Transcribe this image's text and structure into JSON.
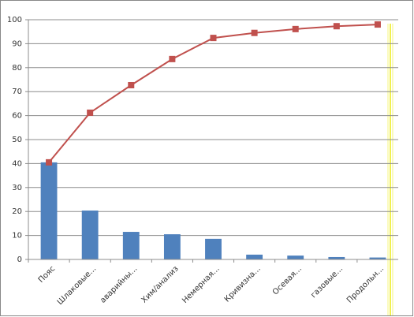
{
  "chart_data": {
    "type": "bar",
    "categories": [
      "Пояс",
      "Шлаковые...",
      "аварийны...",
      "Хим/анализ",
      "Немерная...",
      "Кривизна...",
      "Осевая...",
      "газовые...",
      "Продольн..."
    ],
    "series": [
      {
        "type": "bar",
        "color": "#4f81bd",
        "values": [
          40.5,
          20.4,
          11.5,
          10.5,
          8.6,
          2,
          1.6,
          1,
          0.8
        ]
      },
      {
        "type": "line",
        "color": "#c0504d",
        "values": [
          40.5,
          61.2,
          72.7,
          83.6,
          92.4,
          94.5,
          96.1,
          97.3,
          98
        ]
      }
    ],
    "ylim": [
      0,
      100
    ],
    "yticks": [
      0,
      10,
      20,
      30,
      40,
      50,
      60,
      70,
      80,
      90,
      100
    ],
    "grid": true
  }
}
